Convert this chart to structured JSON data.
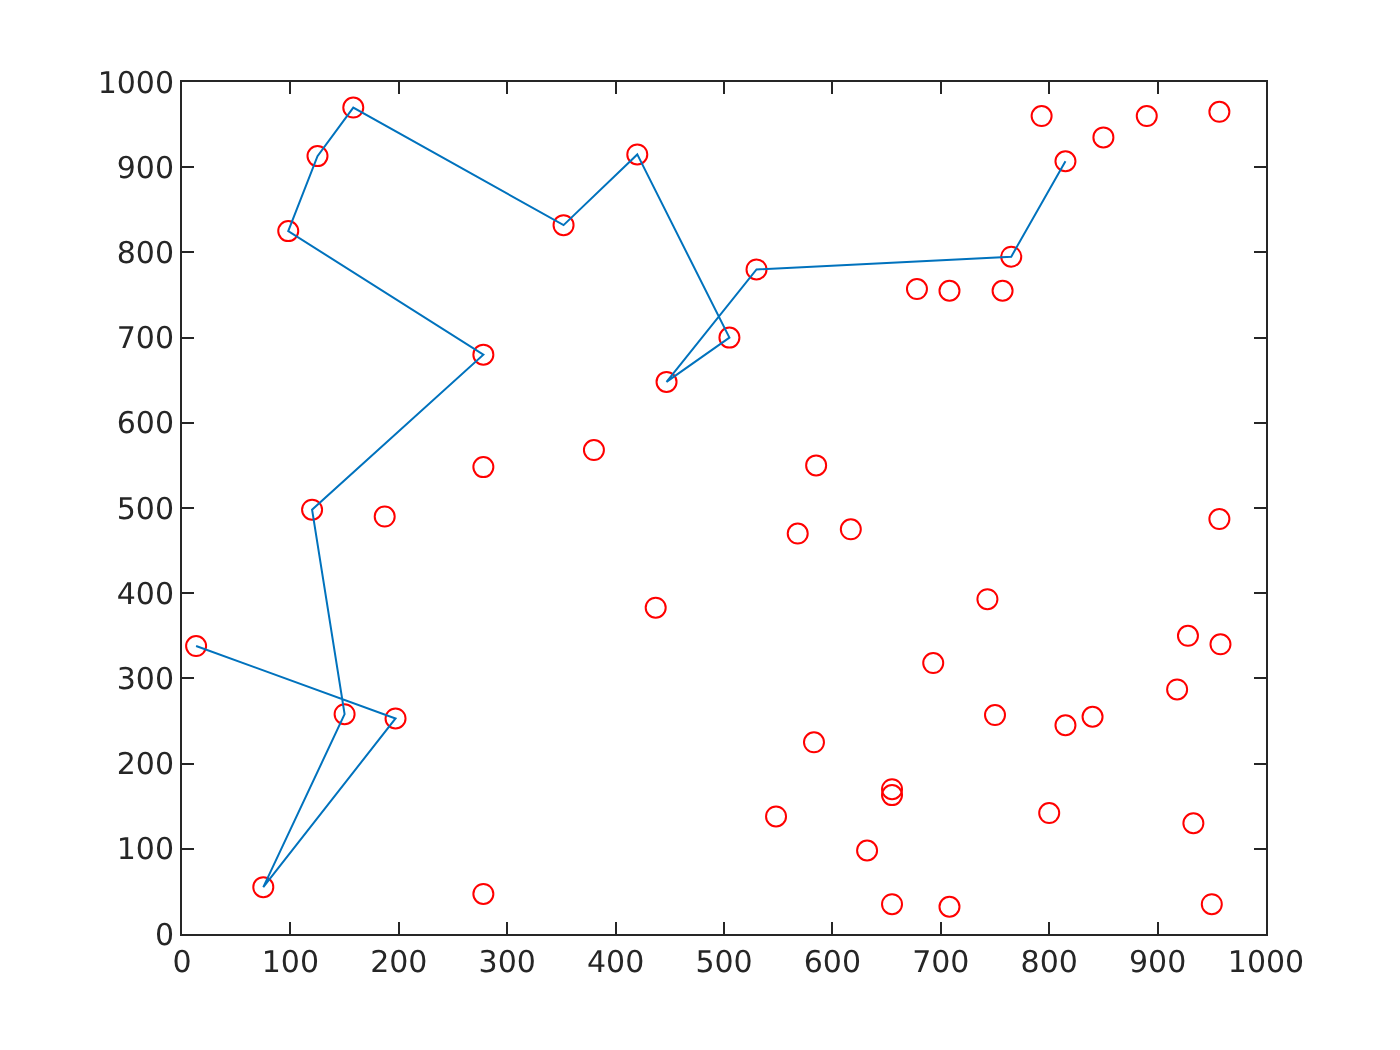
{
  "chart_data": {
    "type": "scatter",
    "xlim": [
      0,
      1000
    ],
    "ylim": [
      0,
      1000
    ],
    "xticks": [
      0,
      100,
      200,
      300,
      400,
      500,
      600,
      700,
      800,
      900,
      1000
    ],
    "yticks": [
      0,
      100,
      200,
      300,
      400,
      500,
      600,
      700,
      800,
      900,
      1000
    ],
    "series": [
      {
        "marker": "circle",
        "color": "#ff0000",
        "x": [
          13,
          197,
          75,
          150,
          120,
          278,
          98,
          125,
          158,
          352,
          420,
          505,
          447,
          530,
          765,
          815,
          187,
          278,
          380,
          278,
          585,
          568,
          617,
          437,
          743,
          693,
          583,
          750,
          815,
          840,
          548,
          655,
          655,
          632,
          655,
          708,
          800,
          918,
          928,
          958,
          957,
          933,
          950,
          678,
          708,
          757,
          793,
          850,
          890,
          957
        ],
        "values": [
          338,
          253,
          55,
          258,
          498,
          680,
          825,
          913,
          970,
          832,
          915,
          700,
          648,
          780,
          795,
          907,
          490,
          548,
          568,
          47,
          550,
          470,
          475,
          383,
          393,
          318,
          225,
          257,
          245,
          255,
          138,
          170,
          163,
          98,
          35,
          32,
          142,
          287,
          350,
          340,
          487,
          130,
          35,
          757,
          755,
          755,
          960,
          935,
          960,
          965
        ]
      },
      {
        "type": "line",
        "marker": "none",
        "line_style": "solid",
        "color": "#0072bd",
        "x": [
          13,
          197,
          75,
          150,
          120,
          278,
          98,
          125,
          158,
          352,
          420,
          505,
          447,
          530,
          765,
          815
        ],
        "values": [
          338,
          253,
          55,
          258,
          498,
          680,
          825,
          913,
          970,
          832,
          915,
          700,
          648,
          780,
          795,
          907
        ]
      }
    ]
  }
}
